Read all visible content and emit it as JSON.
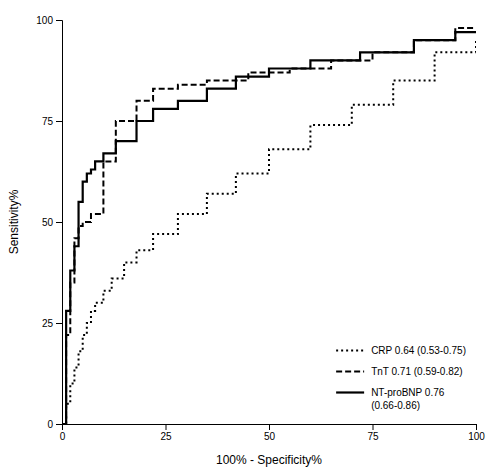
{
  "chart_data": {
    "type": "step",
    "xlabel": "100% - Specificity%",
    "ylabel": "Sensitivity%",
    "xlim": [
      0,
      100
    ],
    "ylim": [
      0,
      100
    ],
    "xticks": [
      0,
      25,
      50,
      75,
      100
    ],
    "yticks": [
      0,
      25,
      50,
      75,
      100
    ],
    "legend": "lower right",
    "series": [
      {
        "name": "CRP 0.64 (0.53-0.75)",
        "color": "#000000",
        "line_style": "dotted",
        "x": [
          0,
          1,
          2,
          3,
          4,
          5,
          6,
          7,
          8,
          10,
          12,
          15,
          18,
          22,
          28,
          35,
          42,
          50,
          60,
          70,
          80,
          90,
          100
        ],
        "values": [
          0,
          5,
          10,
          14,
          18,
          22,
          25,
          28,
          30,
          33,
          36,
          40,
          43,
          47,
          52,
          57,
          62,
          68,
          74,
          79,
          85,
          92,
          95
        ]
      },
      {
        "name": "TnT 0.71 (0.59-0.82)",
        "color": "#000000",
        "line_style": "dashed",
        "x": [
          0,
          1,
          2,
          3,
          4,
          5,
          7,
          10,
          13,
          18,
          22,
          28,
          35,
          45,
          55,
          65,
          75,
          85,
          95,
          100
        ],
        "values": [
          0,
          22,
          35,
          46,
          49,
          50,
          52,
          65,
          75,
          80,
          83,
          84,
          85,
          87,
          88,
          90,
          92,
          95,
          98,
          98
        ]
      },
      {
        "name": "NT-proBNP 0.76\n(0.66-0.86)",
        "color": "#000000",
        "line_style": "solid",
        "x": [
          0,
          1,
          2,
          3,
          4,
          5,
          6,
          7,
          8,
          10,
          13,
          18,
          22,
          28,
          35,
          42,
          50,
          60,
          72,
          85,
          95,
          100
        ],
        "values": [
          0,
          28,
          38,
          44,
          55,
          60,
          62,
          63,
          65,
          67,
          70,
          75,
          78,
          80,
          83,
          86,
          88,
          90,
          92,
          95,
          97,
          97
        ]
      }
    ]
  }
}
